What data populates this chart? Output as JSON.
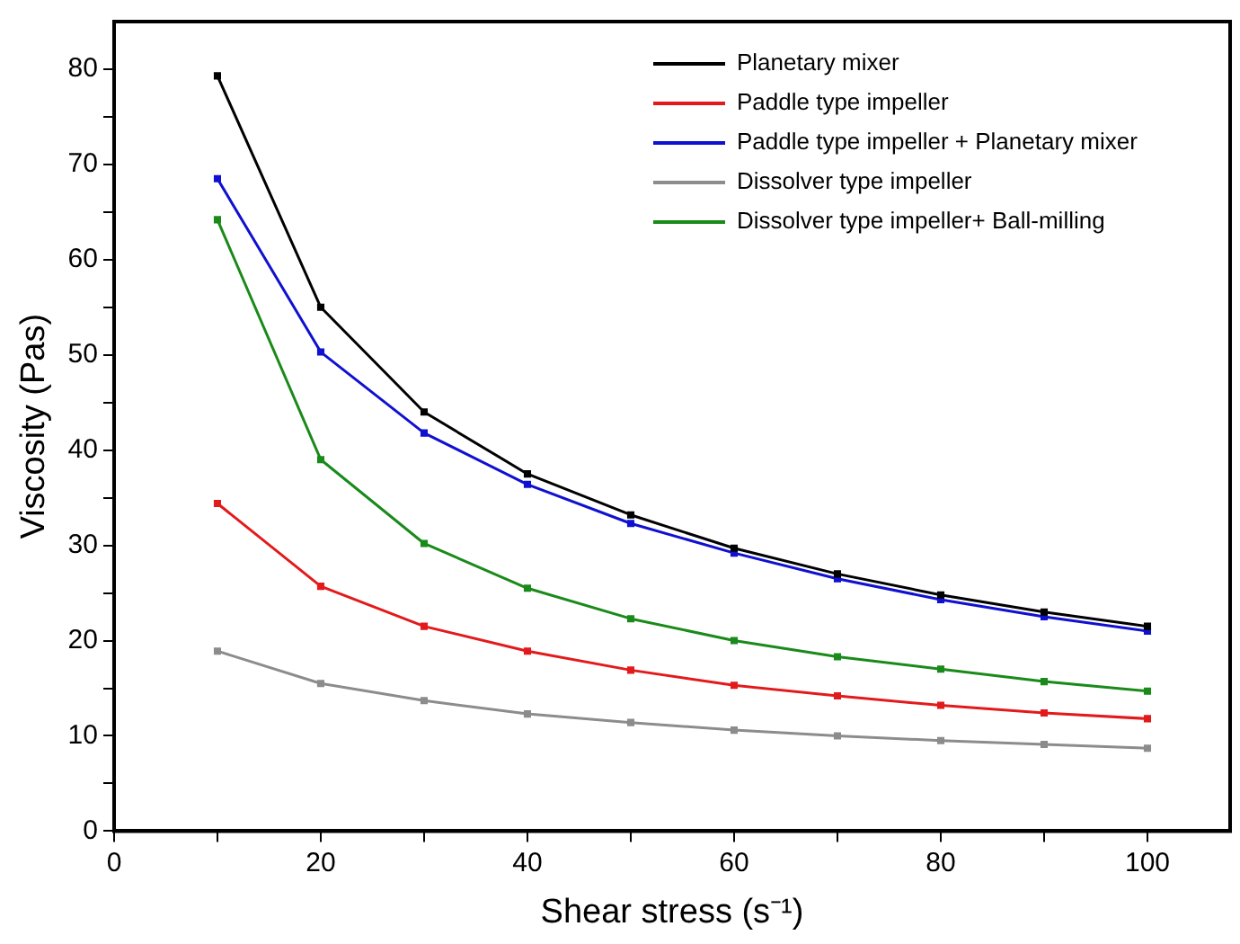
{
  "chart_data": {
    "type": "line",
    "xlabel": "Shear stress (s⁻¹)",
    "ylabel": "Viscosity (Pas)",
    "x": [
      10,
      20,
      30,
      40,
      50,
      60,
      70,
      80,
      90,
      100
    ],
    "series": [
      {
        "name": "Planetary mixer",
        "color": "#000000",
        "values": [
          79.3,
          55,
          44,
          37.5,
          33.2,
          29.7,
          27,
          24.8,
          23,
          21.5
        ]
      },
      {
        "name": "Paddle type impeller",
        "color": "#e31a1c",
        "values": [
          34.4,
          25.7,
          21.5,
          18.9,
          16.9,
          15.3,
          14.2,
          13.2,
          12.4,
          11.8
        ]
      },
      {
        "name": "Paddle type impeller + Planetary mixer",
        "color": "#1010d0",
        "values": [
          68.5,
          50.3,
          41.8,
          36.4,
          32.3,
          29.2,
          26.5,
          24.3,
          22.5,
          21
        ]
      },
      {
        "name": "Dissolver type impeller",
        "color": "#8c8c8c",
        "values": [
          18.9,
          15.5,
          13.7,
          12.3,
          11.4,
          10.6,
          10,
          9.5,
          9.1,
          8.7
        ]
      },
      {
        "name": "Dissolver type impeller+ Ball-milling",
        "color": "#1a8a1a",
        "values": [
          64.2,
          39,
          30.2,
          25.5,
          22.3,
          20,
          18.3,
          17,
          15.7,
          14.7
        ]
      }
    ],
    "xlim": [
      0,
      108
    ],
    "xticks": [
      0,
      {
        "value": 10,
        "label": null
      },
      20,
      {
        "value": 30,
        "label": null
      },
      40,
      {
        "value": 50,
        "label": null
      },
      60,
      {
        "value": 70,
        "label": null
      },
      80,
      {
        "value": 90,
        "label": null
      },
      100
    ],
    "ylim": [
      0,
      85
    ],
    "yticks": [
      0,
      {
        "value": 5,
        "label": null
      },
      10,
      {
        "value": 15,
        "label": null
      },
      20,
      {
        "value": 25,
        "label": null
      },
      30,
      {
        "value": 35,
        "label": null
      },
      40,
      {
        "value": 45,
        "label": null
      },
      50,
      {
        "value": 55,
        "label": null
      },
      60,
      {
        "value": 65,
        "label": null
      },
      70,
      {
        "value": 75,
        "label": null
      },
      80
    ],
    "grid": false,
    "legend": "top right",
    "marker": "square",
    "line_style": "solid"
  }
}
